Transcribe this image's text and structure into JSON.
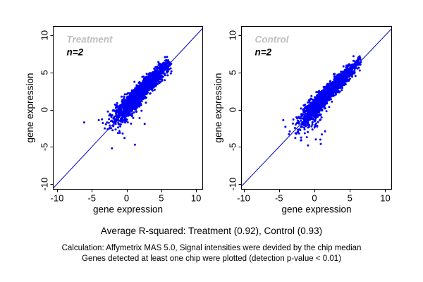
{
  "captions": {
    "rsquared": "Average R-squared: Treatment (0.92), Control (0.93)",
    "note1": "Calculation: Affymetrix MAS 5.0, Signal intensities were devided by the chip median",
    "note2": "Genes detected at least one chip were plotted (detection p-value < 0.01)"
  },
  "colors": {
    "background": "#ffffff",
    "point": "#0000f5",
    "identity_line": "#0000cc",
    "axis": "#000000",
    "panel_title": "#bfbfbf",
    "n_label": "#000000",
    "tick_text": "#000000"
  },
  "chart_data": [
    {
      "type": "scatter",
      "title": "Treatment",
      "n_label": "n=2",
      "xlabel": "gene expression",
      "ylabel": "gene expression",
      "xlim": [
        -10.55,
        10.95
      ],
      "ylim": [
        -10.7,
        11.2
      ],
      "xticks": [
        -10,
        -5,
        0,
        5,
        10
      ],
      "yticks": [
        -10,
        -5,
        0,
        5,
        10
      ],
      "grid": false,
      "legend": false,
      "identity_line": true,
      "r_squared": 0.92,
      "cloud": {
        "seed": 12345,
        "n": 2000,
        "t_mean": 2.1,
        "t_sd": 1.85,
        "t_min": -2.9,
        "t_max": 6.35,
        "offset": 0.35,
        "spread_base": 0.42,
        "spread_extra": 0.28,
        "spread_center": 2.0,
        "spread_range": 5.0,
        "tail": {
          "n": 70,
          "x_mean": 0.3,
          "x_sd": 1.0,
          "drop_min": 0.5,
          "drop_sd": 1.0,
          "y_floor": -3.3
        }
      },
      "outliers": [
        [
          -6.1,
          -1.7
        ],
        [
          -2.1,
          -5.2
        ],
        [
          1.2,
          -4.7
        ],
        [
          -0.3,
          -3.8
        ],
        [
          2.6,
          -1.9
        ],
        [
          -4.0,
          -1.4
        ]
      ]
    },
    {
      "type": "scatter",
      "title": "Control",
      "n_label": "n=2",
      "xlabel": "gene expression",
      "ylabel": "gene expression",
      "xlim": [
        -10.3,
        10.9
      ],
      "ylim": [
        -10.7,
        11.2
      ],
      "xticks": [
        -10,
        -5,
        0,
        5,
        10
      ],
      "yticks": [
        -10,
        -5,
        0,
        5,
        10
      ],
      "grid": false,
      "legend": false,
      "identity_line": true,
      "r_squared": 0.93,
      "cloud": {
        "seed": 98765,
        "n": 2100,
        "t_mean": 2.0,
        "t_sd": 1.8,
        "t_min": -2.9,
        "t_max": 6.4,
        "offset": 0.3,
        "spread_base": 0.38,
        "spread_extra": 0.3,
        "spread_center": 1.5,
        "spread_range": 5.0,
        "tail": {
          "n": 115,
          "x_mean": 0.0,
          "x_sd": 1.2,
          "drop_min": 0.4,
          "drop_sd": 1.2,
          "y_floor": -4.2
        }
      },
      "outliers": [
        [
          -0.9,
          -4.8
        ],
        [
          0.9,
          -4.6
        ],
        [
          -4.4,
          -1.4
        ],
        [
          -4.1,
          -2.3
        ],
        [
          -3.6,
          -3.3
        ],
        [
          -2.7,
          -3.8
        ],
        [
          1.5,
          -2.9
        ],
        [
          0.2,
          -4.0
        ]
      ]
    }
  ]
}
